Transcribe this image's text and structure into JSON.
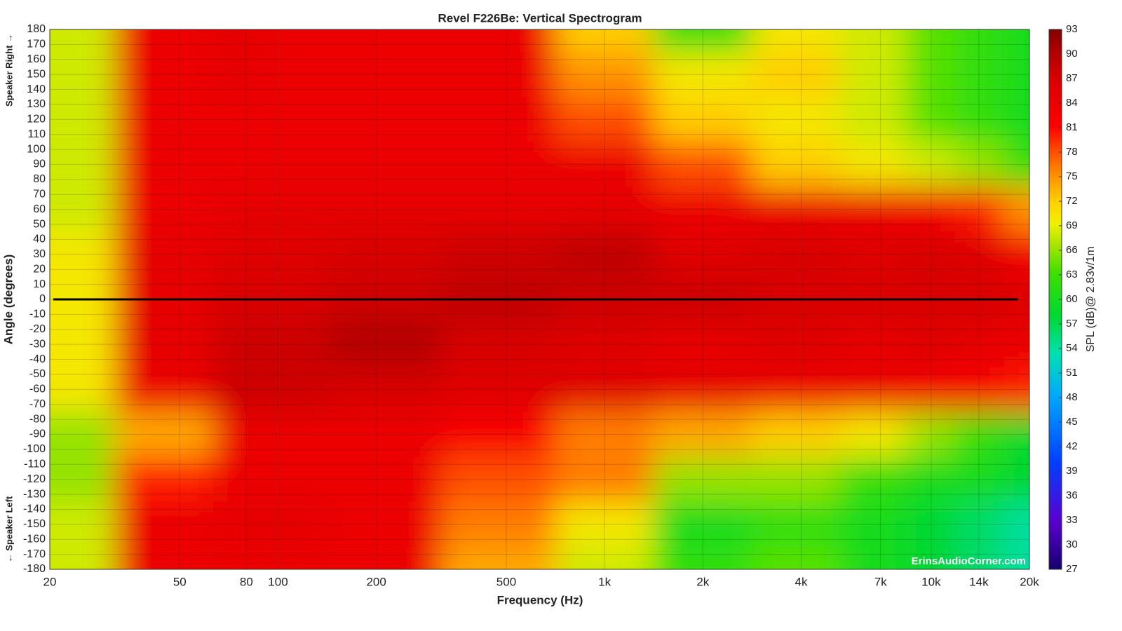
{
  "chart_data": {
    "type": "heatmap",
    "title": "Revel F226Be: Vertical Spectrogram",
    "x_label": "Frequency (Hz)",
    "y_label": "Angle (degrees)",
    "y_label_top": "Speaker Right →",
    "y_label_bottom": "← Speaker Left",
    "colorbar_label": "SPL (dB)@ 2.83v/1m",
    "watermark": "ErinsAudioCorner.com",
    "x_scale": "log",
    "grid": true,
    "x": [
      20,
      50,
      80,
      100,
      200,
      500,
      1000,
      2000,
      4000,
      7000,
      10000,
      14000,
      20000
    ],
    "y": [
      180,
      150,
      120,
      90,
      60,
      30,
      0,
      -30,
      -60,
      -90,
      -120,
      -150,
      -180
    ],
    "z": [
      [
        68,
        84,
        85,
        84,
        84,
        84,
        72,
        62,
        70,
        68,
        64,
        62,
        60
      ],
      [
        68,
        84,
        85,
        84,
        84,
        84,
        75,
        70,
        72,
        68,
        64,
        62,
        60
      ],
      [
        68,
        84,
        84,
        84,
        84,
        84,
        78,
        72,
        70,
        68,
        64,
        62,
        60
      ],
      [
        68,
        84,
        84,
        84,
        84,
        84,
        84,
        78,
        72,
        70,
        68,
        66,
        62
      ],
      [
        68,
        84,
        85,
        85,
        85,
        85,
        85,
        84,
        84,
        84,
        83,
        80,
        75
      ],
      [
        70,
        85,
        86,
        86,
        87,
        88,
        89,
        86,
        87,
        86,
        87,
        86,
        83
      ],
      [
        70,
        85,
        87,
        87,
        88,
        89,
        88,
        88,
        87,
        87,
        87,
        87,
        86
      ],
      [
        70,
        85,
        88,
        88,
        90,
        87,
        86,
        85,
        86,
        85,
        86,
        85,
        84
      ],
      [
        70,
        84,
        88,
        88,
        87,
        86,
        86,
        85,
        84,
        84,
        83,
        82,
        80
      ],
      [
        66,
        74,
        84,
        84,
        84,
        82,
        76,
        74,
        72,
        70,
        66,
        62,
        58
      ],
      [
        66,
        80,
        84,
        84,
        84,
        78,
        76,
        66,
        66,
        62,
        60,
        60,
        58
      ],
      [
        68,
        84,
        85,
        85,
        84,
        76,
        70,
        60,
        62,
        60,
        58,
        56,
        54
      ],
      [
        68,
        84,
        84,
        84,
        84,
        74,
        68,
        62,
        64,
        60,
        58,
        56,
        54
      ]
    ],
    "xlim": [
      20,
      20000
    ],
    "xticks": [
      20,
      50,
      80,
      100,
      200,
      500,
      {
        "value": 1000,
        "label": "1k"
      },
      {
        "value": 2000,
        "label": "2k"
      },
      {
        "value": 4000,
        "label": "4k"
      },
      {
        "value": 7000,
        "label": "7k"
      },
      {
        "value": 10000,
        "label": "10k"
      },
      {
        "value": 14000,
        "label": "14k"
      },
      {
        "value": 20000,
        "label": "20k"
      }
    ],
    "ylim": [
      -180,
      180
    ],
    "yticks": [
      -180,
      -170,
      -160,
      -150,
      -140,
      -130,
      -120,
      -110,
      -100,
      -90,
      -80,
      -70,
      -60,
      -50,
      -40,
      -30,
      -20,
      -10,
      0,
      10,
      20,
      30,
      40,
      50,
      60,
      70,
      80,
      90,
      100,
      110,
      120,
      130,
      140,
      150,
      160,
      170,
      180
    ],
    "clim": [
      27,
      93
    ],
    "cticks": [
      27,
      30,
      33,
      36,
      39,
      42,
      45,
      48,
      51,
      54,
      57,
      60,
      63,
      66,
      69,
      72,
      75,
      78,
      81,
      84,
      87,
      90,
      93
    ]
  }
}
